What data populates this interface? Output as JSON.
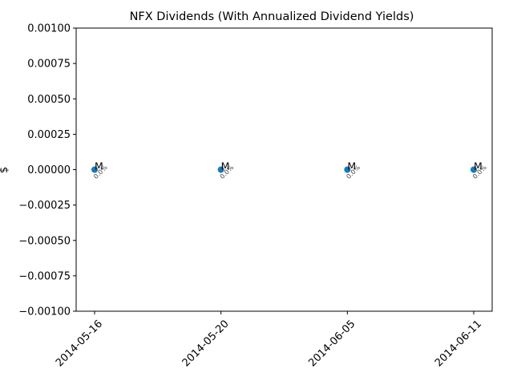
{
  "chart_data": {
    "type": "scatter",
    "title": "NFX Dividends (With Annualized Dividend Yields)",
    "xlabel": "",
    "ylabel": "$",
    "x": [
      "2014-05-16",
      "2014-05-20",
      "2014-06-05",
      "2014-06-11"
    ],
    "y": [
      0.0,
      0.0,
      0.0,
      0.0
    ],
    "point_labels": [
      "M",
      "M",
      "M",
      "M"
    ],
    "yield_labels": [
      "0.0%",
      "0.0%",
      "0.0%",
      "0.0%"
    ],
    "ylim": [
      -0.001,
      0.001
    ],
    "yticks": [
      -0.001,
      -0.00075,
      -0.0005,
      -0.00025,
      0.0,
      0.00025,
      0.0005,
      0.00075,
      0.001
    ],
    "ytick_labels": [
      "−0.00100",
      "−0.00075",
      "−0.00050",
      "−0.00025",
      "0.00000",
      "0.00025",
      "0.00050",
      "0.00075",
      "0.00100"
    ],
    "xtick_labels": [
      "2014-05-16",
      "2014-05-20",
      "2014-06-05",
      "2014-06-11"
    ],
    "grid": false,
    "marker_color": "#1f77b4"
  }
}
